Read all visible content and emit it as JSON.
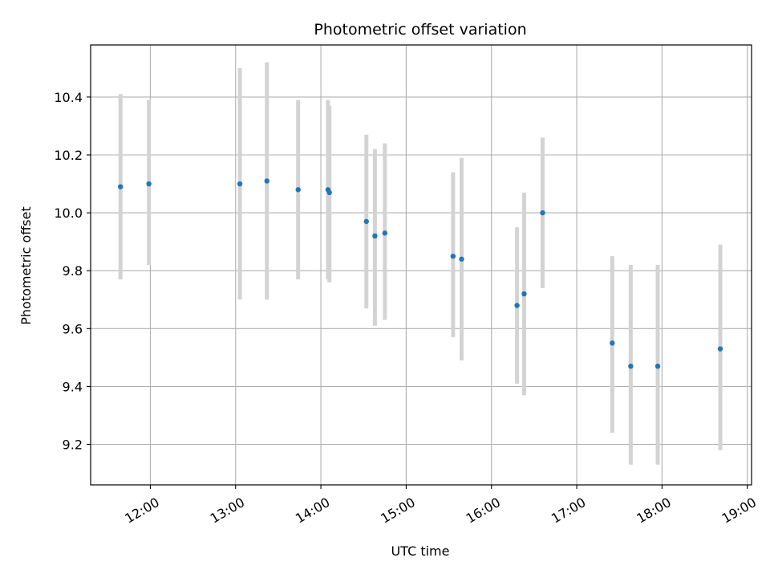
{
  "chart_data": {
    "type": "scatter",
    "title": "Photometric offset variation",
    "xlabel": "UTC time",
    "ylabel": "Photometric offset",
    "x_tick_labels": [
      "12:00",
      "13:00",
      "14:00",
      "15:00",
      "16:00",
      "17:00",
      "18:00",
      "19:00"
    ],
    "y_tick_labels": [
      "9.2",
      "9.4",
      "9.6",
      "9.8",
      "10.0",
      "10.2",
      "10.4"
    ],
    "xlim": [
      "11:18",
      "19:03"
    ],
    "ylim": [
      9.06,
      10.58
    ],
    "grid": true,
    "point_color": "#1f77b4",
    "errorbar_color": "#d3d3d3",
    "points": [
      {
        "time": "11:39",
        "value": 10.09,
        "low": 9.77,
        "high": 10.41
      },
      {
        "time": "11:59",
        "value": 10.1,
        "low": 9.82,
        "high": 10.39
      },
      {
        "time": "13:03",
        "value": 10.1,
        "low": 9.7,
        "high": 10.5
      },
      {
        "time": "13:22",
        "value": 10.11,
        "low": 9.7,
        "high": 10.52
      },
      {
        "time": "13:44",
        "value": 10.08,
        "low": 9.77,
        "high": 10.39
      },
      {
        "time": "14:05",
        "value": 10.08,
        "low": 9.77,
        "high": 10.39
      },
      {
        "time": "14:06",
        "value": 10.07,
        "low": 9.76,
        "high": 10.37
      },
      {
        "time": "14:32",
        "value": 9.97,
        "low": 9.67,
        "high": 10.27
      },
      {
        "time": "14:38",
        "value": 9.92,
        "low": 9.61,
        "high": 10.22
      },
      {
        "time": "14:45",
        "value": 9.93,
        "low": 9.63,
        "high": 10.24
      },
      {
        "time": "15:33",
        "value": 9.85,
        "low": 9.57,
        "high": 10.14
      },
      {
        "time": "15:39",
        "value": 9.84,
        "low": 9.49,
        "high": 10.19
      },
      {
        "time": "16:18",
        "value": 9.68,
        "low": 9.41,
        "high": 9.95
      },
      {
        "time": "16:23",
        "value": 9.72,
        "low": 9.37,
        "high": 10.07
      },
      {
        "time": "16:36",
        "value": 10.0,
        "low": 9.74,
        "high": 10.26
      },
      {
        "time": "17:25",
        "value": 9.55,
        "low": 9.24,
        "high": 9.85
      },
      {
        "time": "17:38",
        "value": 9.47,
        "low": 9.13,
        "high": 9.82
      },
      {
        "time": "17:57",
        "value": 9.47,
        "low": 9.13,
        "high": 9.82
      },
      {
        "time": "18:41",
        "value": 9.53,
        "low": 9.18,
        "high": 9.89
      }
    ]
  }
}
